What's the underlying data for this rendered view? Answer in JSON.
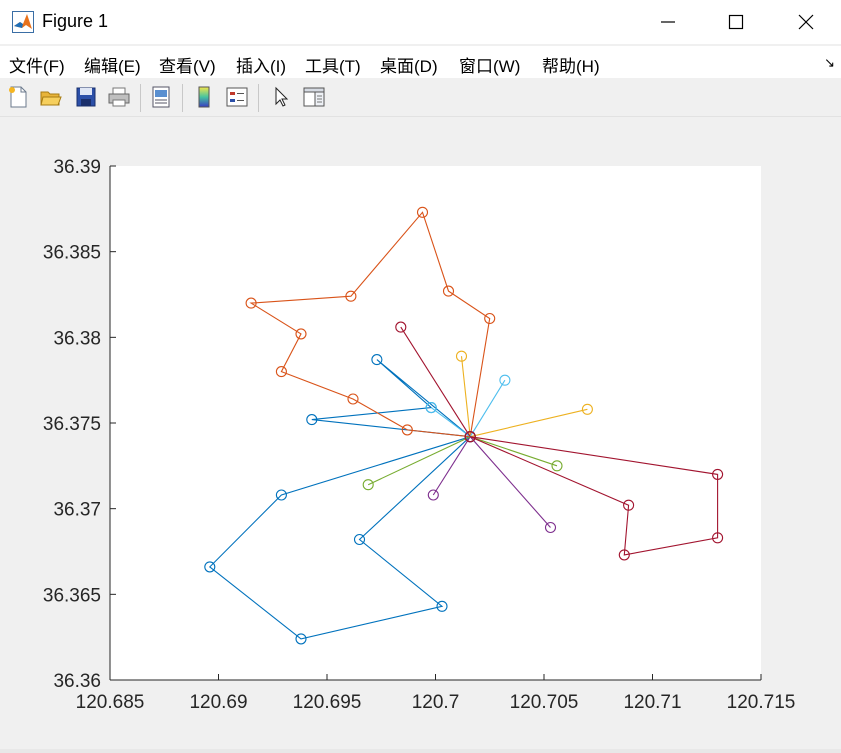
{
  "window": {
    "title": "Figure 1"
  },
  "menu": [
    {
      "label": "文件(F)"
    },
    {
      "label": "编辑(E)"
    },
    {
      "label": "查看(V)"
    },
    {
      "label": "插入(I)"
    },
    {
      "label": "工具(T)"
    },
    {
      "label": "桌面(D)"
    },
    {
      "label": "窗口(W)"
    },
    {
      "label": "帮助(H)"
    }
  ],
  "toolbar": {
    "icons": [
      "new-figure-icon",
      "open-file-icon",
      "save-icon",
      "print-icon",
      "print-preview-icon",
      "colorbar-icon",
      "legend-icon",
      "select-pointer-icon",
      "property-editor-icon"
    ]
  },
  "chart_data": {
    "type": "line",
    "title": "",
    "xlabel": "",
    "ylabel": "",
    "xlim": [
      120.685,
      120.715
    ],
    "ylim": [
      36.36,
      36.39
    ],
    "x_ticks": [
      "120.685",
      "120.69",
      "120.695",
      "120.7",
      "120.705",
      "120.71",
      "120.715"
    ],
    "y_ticks": [
      "36.36",
      "36.365",
      "36.37",
      "36.375",
      "36.38",
      "36.385",
      "36.39"
    ],
    "x_tick_values": [
      120.685,
      120.69,
      120.695,
      120.7,
      120.705,
      120.71,
      120.715
    ],
    "y_tick_values": [
      36.36,
      36.365,
      36.37,
      36.375,
      36.38,
      36.385,
      36.39
    ],
    "marker": "circle",
    "grid": false,
    "series": [
      {
        "color": "#0072BD",
        "x": [
          120.7016,
          120.6943,
          120.6998,
          120.6973,
          120.7016
        ],
        "y": [
          36.3742,
          36.3752,
          36.3759,
          36.3787,
          36.3742
        ]
      },
      {
        "color": "#0072BD",
        "x": [
          120.7016,
          120.6929,
          120.6896,
          120.6938,
          120.7003,
          120.6965,
          120.7016
        ],
        "y": [
          36.3742,
          36.3708,
          36.3666,
          36.3624,
          36.3643,
          36.3682,
          36.3742
        ]
      },
      {
        "color": "#D95319",
        "x": [
          120.7016,
          120.6987,
          120.6962,
          120.6929,
          120.6938,
          120.6915,
          120.6961,
          120.6994,
          120.7006,
          120.7025,
          120.7016
        ],
        "y": [
          36.3742,
          36.3746,
          36.3764,
          36.378,
          36.3802,
          36.382,
          36.3824,
          36.3873,
          36.3827,
          36.3811,
          36.3742
        ]
      },
      {
        "color": "#EDB120",
        "x": [
          120.7016,
          120.7012,
          120.7016,
          120.707,
          120.7016
        ],
        "y": [
          36.3742,
          36.3789,
          36.3742,
          36.3758,
          36.3742
        ]
      },
      {
        "color": "#7E2F8E",
        "x": [
          120.7016,
          120.6999,
          120.7016,
          120.7053,
          120.7016
        ],
        "y": [
          36.3742,
          36.3708,
          36.3742,
          36.3689,
          36.3742
        ]
      },
      {
        "color": "#77AC30",
        "x": [
          120.7016,
          120.6969,
          120.7016,
          120.7056,
          120.7016
        ],
        "y": [
          36.3742,
          36.3714,
          36.3742,
          36.3725,
          36.3742
        ]
      },
      {
        "color": "#4DBEEE",
        "x": [
          120.7016,
          120.6998,
          120.7016,
          120.7032,
          120.7016
        ],
        "y": [
          36.3742,
          36.3759,
          36.3742,
          36.3775,
          36.3742
        ]
      },
      {
        "color": "#A2142F",
        "x": [
          120.7016,
          120.6984,
          120.7016,
          120.713,
          120.713,
          120.7087,
          120.7089,
          120.7016
        ],
        "y": [
          36.3742,
          36.3806,
          36.3742,
          36.372,
          36.3683,
          36.3673,
          36.3702,
          36.3742
        ]
      }
    ]
  }
}
